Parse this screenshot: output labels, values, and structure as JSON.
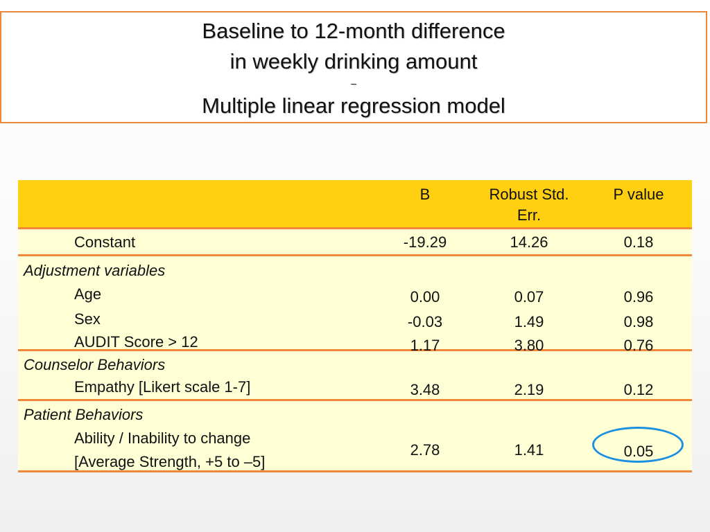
{
  "title": {
    "line1": "Baseline to 12-month difference",
    "line2": "in weekly drinking amount",
    "dash": "–",
    "line3": "Multiple linear regression model"
  },
  "table": {
    "headers": {
      "b": "B",
      "se_line1": "Robust Std.",
      "se_line2": "Err.",
      "p": "P value"
    },
    "constant": {
      "label": "Constant",
      "b": "-19.29",
      "se": "14.26",
      "p": "0.18"
    },
    "groups": [
      {
        "label": "Adjustment variables",
        "rows": [
          {
            "label": "Age",
            "b": "0.00",
            "se": "0.07",
            "p": "0.96"
          },
          {
            "label": "Sex",
            "b": "-0.03",
            "se": "1.49",
            "p": "0.98"
          },
          {
            "label": "AUDIT Score > 12",
            "b": "1.17",
            "se": "3.80",
            "p": "0.76"
          }
        ]
      },
      {
        "label": "Counselor Behaviors",
        "rows": [
          {
            "label": "Empathy [Likert scale 1-7]",
            "b": "3.48",
            "se": "2.19",
            "p": "0.12"
          }
        ]
      },
      {
        "label": "Patient Behaviors",
        "rows": [
          {
            "label_line1": "Ability / Inability to change",
            "label_line2": "[Average Strength, +5 to –5]",
            "b": "2.78",
            "se": "1.41",
            "p": "0.05"
          }
        ]
      }
    ]
  },
  "colors": {
    "header_bg": "#ffd011",
    "row_bg": "#ffffd6",
    "accent_border": "#f0883a",
    "highlight": "#1f8fe0"
  }
}
